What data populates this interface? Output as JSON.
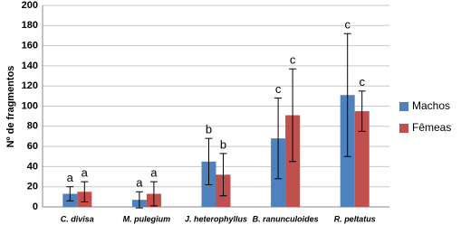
{
  "chart_data": {
    "type": "bar",
    "y_label": "Nº de fragmentos",
    "categories": [
      "C. divisa",
      "M. pulegium",
      "J. heterophyllus",
      "B. ranunculoides",
      "R. peltatus"
    ],
    "series": [
      {
        "name": "Machos",
        "color": "#4f81bd",
        "values": [
          13,
          7,
          45,
          68,
          111
        ],
        "errors": [
          7,
          8,
          23,
          40,
          61
        ],
        "letters": [
          "a",
          "a",
          "b",
          "c",
          "c"
        ]
      },
      {
        "name": "Fêmeas",
        "color": "#c0504d",
        "values": [
          15,
          13,
          32,
          91,
          95
        ],
        "errors": [
          10,
          12,
          21,
          46,
          20
        ],
        "letters": [
          "a",
          "a",
          "b",
          "c",
          "c"
        ]
      }
    ],
    "ylim": [
      0,
      200
    ],
    "yticks": [
      0,
      20,
      40,
      60,
      80,
      100,
      120,
      140,
      160,
      180,
      200
    ],
    "grid": true
  }
}
